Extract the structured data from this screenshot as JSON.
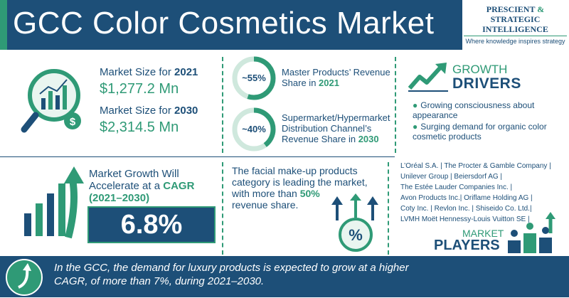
{
  "title": "GCC Color Cosmetics Market",
  "logo": {
    "line1a": "PRESCIENT",
    "line1b": "&",
    "line1c": "STRATEGIC",
    "line2": "INTELLIGENCE",
    "tagline": "Where knowledge inspires strategy"
  },
  "market_size": {
    "label_2021_prefix": "Market Size for ",
    "year_2021": "2021",
    "value_2021": "$1,277.2 Mn",
    "label_2030_prefix": "Market Size for ",
    "year_2030": "2030",
    "value_2030": "$2,314.5 Mn"
  },
  "shares": [
    {
      "pct": "~55%",
      "fill": 0.55,
      "line1": "Master Products’ Revenue",
      "line2_prefix": "Share in ",
      "year": "2021"
    },
    {
      "pct": "~40%",
      "fill": 0.4,
      "line1": "Supermarket/Hypermarket",
      "line2": "Distribution Channel’s",
      "line3_prefix": "Revenue Share in ",
      "year": "2030"
    }
  ],
  "drivers": {
    "title1": "GROWTH",
    "title2": "DRIVERS",
    "items": [
      "Growing consciousness about appearance",
      "Surging demand for organic color cosmetic products"
    ]
  },
  "cagr": {
    "line1": "Market Growth Will",
    "line2_prefix": "Accelerate at a ",
    "line2_hl": "CAGR",
    "line3": "(2021–2030)",
    "value": "6.8%"
  },
  "facial": {
    "l1": "The facial make-up products",
    "l2": "category is leading the market,",
    "l3_prefix": "with more than ",
    "l3_hl": "50%",
    "l4": "revenue share."
  },
  "players": {
    "lines": [
      "L’Oréal S.A. | The Procter & Gamble Company |",
      "Unilever Group | Beiersdorf AG |",
      "The Estée Lauder Companies Inc. |",
      "Avon Products Inc.| Oriflame Holding AG |",
      "Coty Inc. | Revlon Inc. | Shiseido Co. Ltd.|",
      "LVMH Moët Hennessy-Louis Vuitton SE |"
    ],
    "title1": "MARKET",
    "title2": "PLAYERS"
  },
  "footer": "In the GCC, the demand for luxury products is expected to grow at a higher CAGR, of more than 7%, during 2021–2030.",
  "colors": {
    "navy": "#1d4f78",
    "green": "#2f9a76"
  }
}
